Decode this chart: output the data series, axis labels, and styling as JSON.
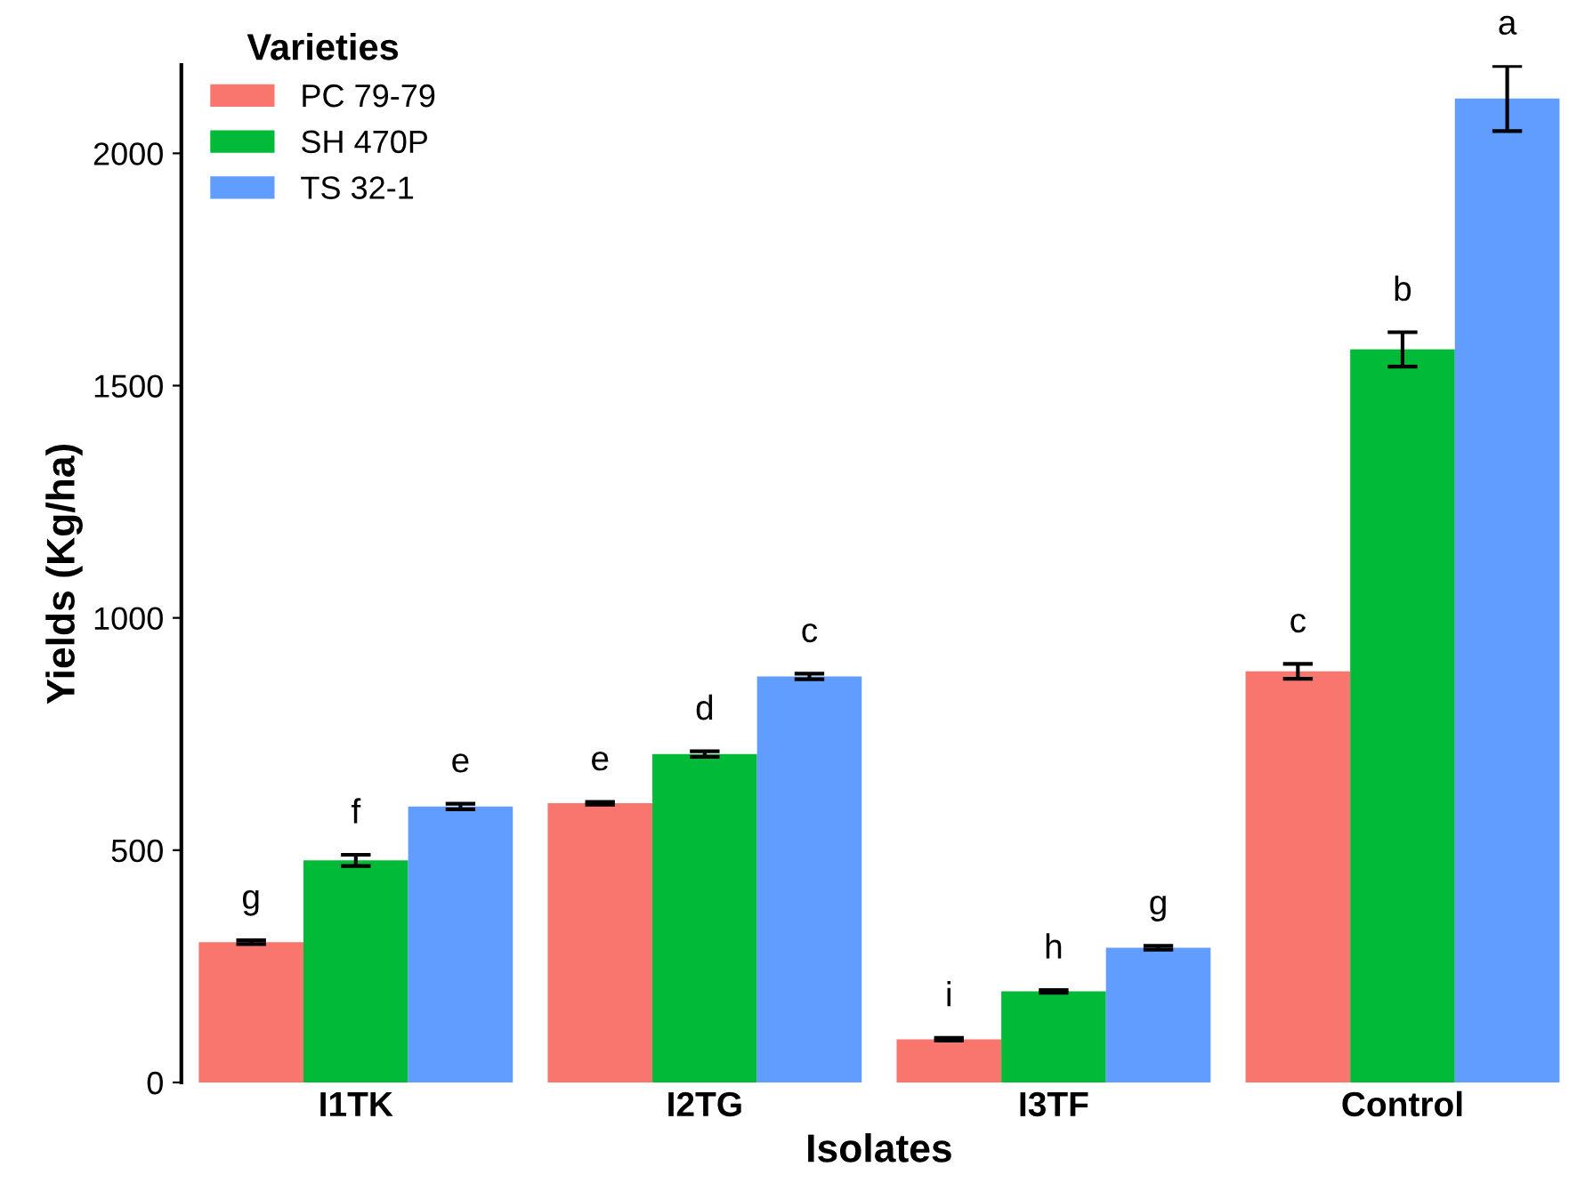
{
  "chart_data": {
    "type": "bar",
    "xlabel": "Isolates",
    "ylabel": "Yields (Kg/ha)",
    "legend_title": "Varieties",
    "categories": [
      "I1TK",
      "I2TG",
      "I3TF",
      "Control"
    ],
    "series": [
      {
        "name": "PC 79-79",
        "color": "#f8766d",
        "values": [
          302,
          601,
          93,
          885
        ],
        "errors": [
          4,
          3,
          3,
          16
        ],
        "value_labels": [
          "g",
          "e",
          "i",
          "c"
        ]
      },
      {
        "name": "SH 470P",
        "color": "#00ba38",
        "values": [
          478,
          707,
          196,
          1578
        ],
        "errors": [
          12,
          6,
          3,
          37
        ],
        "value_labels": [
          "f",
          "d",
          "h",
          "b"
        ]
      },
      {
        "name": "TS 32-1",
        "color": "#619cff",
        "values": [
          594,
          874,
          290,
          2118
        ],
        "errors": [
          6,
          6,
          4,
          70
        ],
        "value_labels": [
          "e",
          "c",
          "g",
          "a"
        ]
      }
    ],
    "ylim": [
      0,
      2190
    ],
    "yticks": [
      0,
      500,
      1000,
      1500,
      2000
    ],
    "grid": false,
    "legend": "top left"
  }
}
